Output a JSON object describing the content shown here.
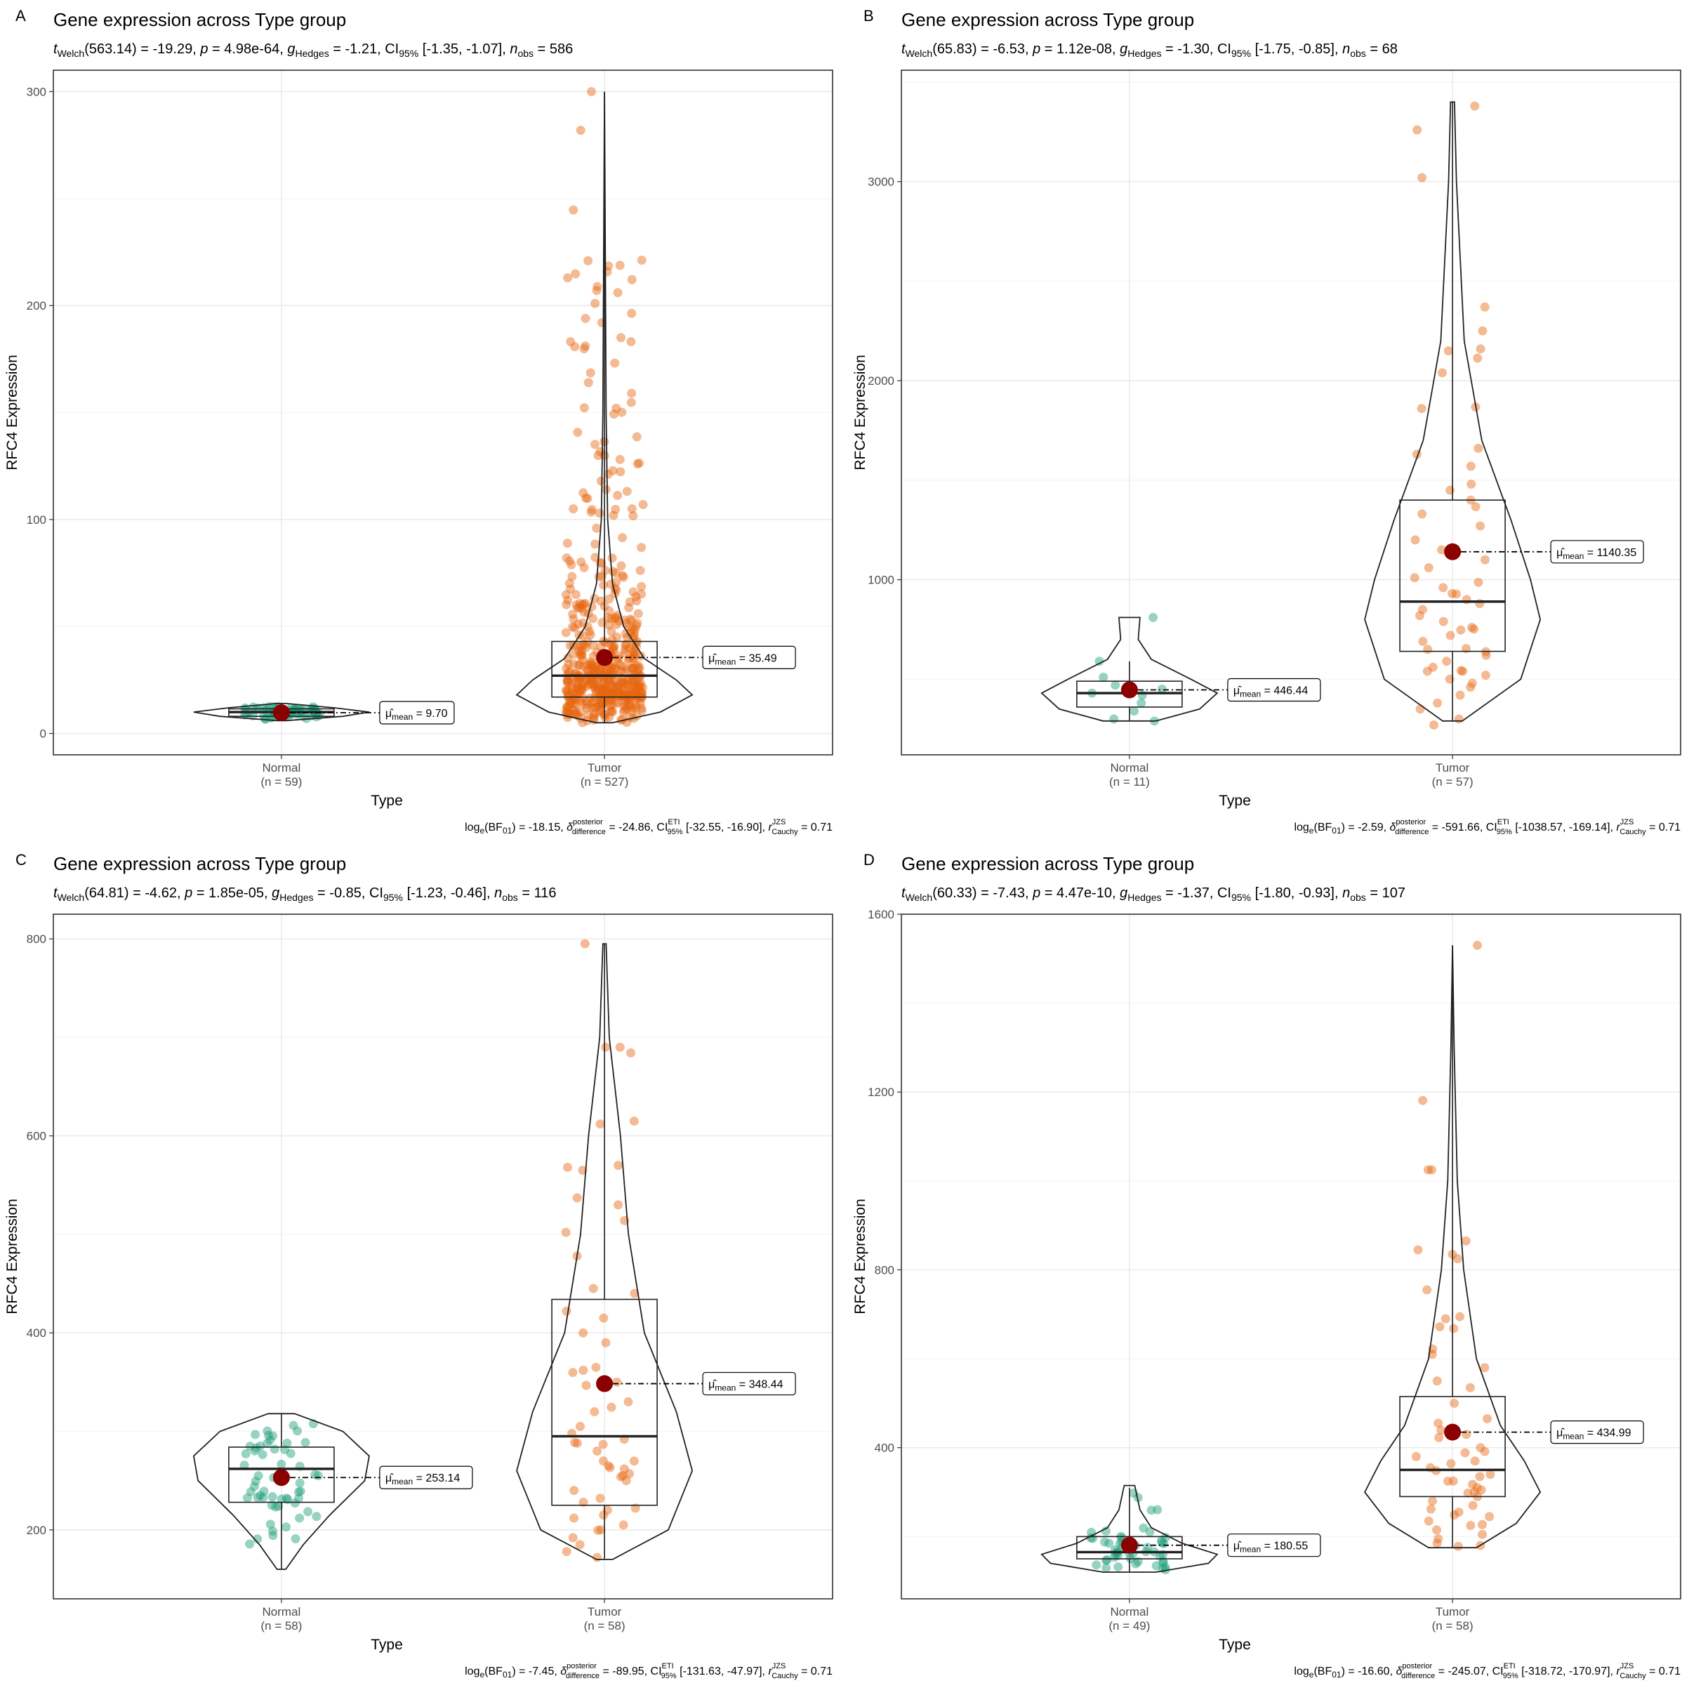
{
  "colors": {
    "normal": "#1b9e77",
    "tumor": "#e7660f",
    "mean_point": "#8b0000",
    "grid_major": "#ebebeb",
    "grid_minor": "#f4f4f4",
    "panel_border": "#333333"
  },
  "chart_data": [
    {
      "type": "violin-box-jitter",
      "panel_label": "A",
      "title": "Gene expression across Type group",
      "subtitle": {
        "stat": "t",
        "stat_sub": "Welch",
        "df": "(563.14) = -19.29, ",
        "p_label": "p",
        "p_value": " = 4.98e-64, ",
        "g_label": "g",
        "g_sub": "Hedges",
        "g_value": " = -1.21, CI",
        "ci_sub": "95%",
        "ci_value": " [-1.35, -1.07], ",
        "n_label": "n",
        "n_sub": "obs",
        "n_value": " = 586"
      },
      "caption": {
        "lead": "log",
        "lead_sub": "e",
        "bf": "(BF",
        "bf_sub": "01",
        "bf_value": ") = -18.15, ",
        "delta_label": "δ",
        "delta_sup": "posterior",
        "delta_sub": "difference",
        "delta_value": " = -24.86, CI",
        "ci_sup": "ETI",
        "ci_sub": "95%",
        "ci_value": " [-32.55, -16.90], ",
        "r_label": "r",
        "r_sup": "JZS",
        "r_sub": "Cauchy",
        "r_value": " = 0.71"
      },
      "xlabel": "Type",
      "ylabel": "RFC4 Expression",
      "ylim": [
        -10,
        310
      ],
      "yticks": [
        0,
        100,
        200,
        300
      ],
      "categories": [
        {
          "name": "Normal",
          "n_label": "(n = 59)",
          "n": 59,
          "mean": 9.7,
          "mean_label": "= 9.70",
          "q1": 8,
          "median": 10,
          "q3": 11.5,
          "whisker_low": 6,
          "whisker_high": 14,
          "violin_min": 6,
          "violin_max": 14,
          "violin_peaks": [
            [
              6,
              0.05
            ],
            [
              8,
              0.7
            ],
            [
              10,
              1.0
            ],
            [
              12,
              0.6
            ],
            [
              14,
              0.05
            ]
          ]
        },
        {
          "name": "Tumor",
          "n_label": "(n = 527)",
          "n": 527,
          "mean": 35.49,
          "mean_label": "= 35.49",
          "q1": 17,
          "median": 27,
          "q3": 43,
          "whisker_low": 5,
          "whisker_high": 300,
          "violin_min": 5,
          "violin_max": 300,
          "violin_peaks": [
            [
              5,
              0.05
            ],
            [
              10,
              0.35
            ],
            [
              18,
              0.55
            ],
            [
              25,
              0.45
            ],
            [
              35,
              0.25
            ],
            [
              50,
              0.12
            ],
            [
              70,
              0.05
            ],
            [
              100,
              0.02
            ],
            [
              150,
              0.01
            ],
            [
              300,
              0.0
            ]
          ],
          "outliers": [
            300,
            207,
            192,
            185,
            164,
            159,
            152,
            126,
            118,
            114,
            110,
            107,
            105
          ]
        }
      ]
    },
    {
      "type": "violin-box-jitter",
      "panel_label": "B",
      "title": "Gene expression across Type group",
      "subtitle": {
        "stat": "t",
        "stat_sub": "Welch",
        "df": "(65.83) = -6.53, ",
        "p_label": "p",
        "p_value": " = 1.12e-08, ",
        "g_label": "g",
        "g_sub": "Hedges",
        "g_value": " = -1.30, CI",
        "ci_sub": "95%",
        "ci_value": " [-1.75, -0.85], ",
        "n_label": "n",
        "n_sub": "obs",
        "n_value": " = 68"
      },
      "caption": {
        "lead": "log",
        "lead_sub": "e",
        "bf": "(BF",
        "bf_sub": "01",
        "bf_value": ") = -2.59, ",
        "delta_label": "δ",
        "delta_sup": "posterior",
        "delta_sub": "difference",
        "delta_value": " = -591.66, CI",
        "ci_sup": "ETI",
        "ci_sub": "95%",
        "ci_value": " [-1038.57, -169.14], ",
        "r_label": "r",
        "r_sup": "JZS",
        "r_sub": "Cauchy",
        "r_value": " = 0.71"
      },
      "xlabel": "Type",
      "ylabel": "RFC4 Expression",
      "ylim": [
        120,
        3560
      ],
      "yticks": [
        1000,
        2000,
        3000
      ],
      "categories": [
        {
          "name": "Normal",
          "n_label": "(n = 11)",
          "n": 11,
          "mean": 446.44,
          "mean_label": "= 446.44",
          "q1": 360,
          "median": 430,
          "q3": 490,
          "whisker_low": 290,
          "whisker_high": 590,
          "violin_min": 290,
          "violin_max": 810,
          "violin_peaks": [
            [
              290,
              0.3
            ],
            [
              350,
              0.8
            ],
            [
              430,
              1.0
            ],
            [
              500,
              0.7
            ],
            [
              600,
              0.25
            ],
            [
              700,
              0.1
            ],
            [
              810,
              0.12
            ]
          ],
          "points": [
            810,
            590,
            510,
            470,
            450,
            430,
            420,
            380,
            340,
            300,
            290
          ]
        },
        {
          "name": "Tumor",
          "n_label": "(n = 57)",
          "n": 57,
          "mean": 1140.35,
          "mean_label": "= 1140.35",
          "q1": 640,
          "median": 890,
          "q3": 1400,
          "whisker_low": 290,
          "whisker_high": 3400,
          "violin_min": 290,
          "violin_max": 3400,
          "violin_peaks": [
            [
              290,
              0.05
            ],
            [
              500,
              0.35
            ],
            [
              800,
              0.45
            ],
            [
              1000,
              0.4
            ],
            [
              1300,
              0.3
            ],
            [
              1700,
              0.15
            ],
            [
              2200,
              0.06
            ],
            [
              3000,
              0.02
            ],
            [
              3400,
              0.01
            ]
          ],
          "points": [
            3380,
            3260,
            3020,
            2370,
            2250,
            2150,
            2040,
            1860,
            1660,
            1630,
            1570,
            1480,
            1400,
            1330,
            1270,
            1200,
            1150,
            1100,
            1060,
            1010,
            960,
            930,
            900,
            880,
            850,
            820,
            790,
            760,
            720,
            690,
            650,
            620,
            590,
            560,
            540,
            520,
            500,
            480,
            460,
            420,
            380,
            350,
            300,
            270
          ]
        }
      ]
    },
    {
      "type": "violin-box-jitter",
      "panel_label": "C",
      "title": "Gene expression across Type group",
      "subtitle": {
        "stat": "t",
        "stat_sub": "Welch",
        "df": "(64.81) = -4.62, ",
        "p_label": "p",
        "p_value": " = 1.85e-05, ",
        "g_label": "g",
        "g_sub": "Hedges",
        "g_value": " = -0.85, CI",
        "ci_sub": "95%",
        "ci_value": " [-1.23, -0.46], ",
        "n_label": "n",
        "n_sub": "obs",
        "n_value": " = 116"
      },
      "caption": {
        "lead": "log",
        "lead_sub": "e",
        "bf": "(BF",
        "bf_sub": "01",
        "bf_value": ") = -7.45, ",
        "delta_label": "δ",
        "delta_sup": "posterior",
        "delta_sub": "difference",
        "delta_value": " = -89.95, CI",
        "ci_sup": "ETI",
        "ci_sub": "95%",
        "ci_value": " [-131.63, -47.97], ",
        "r_label": "r",
        "r_sup": "JZS",
        "r_sub": "Cauchy",
        "r_value": " = 0.71"
      },
      "xlabel": "Type",
      "ylabel": "RFC4 Expression",
      "ylim": [
        130,
        825
      ],
      "yticks": [
        200,
        400,
        600,
        800
      ],
      "categories": [
        {
          "name": "Normal",
          "n_label": "(n = 58)",
          "n": 58,
          "mean": 253.14,
          "mean_label": "= 253.14",
          "q1": 228,
          "median": 262,
          "q3": 284,
          "whisker_low": 160,
          "whisker_high": 318,
          "violin_min": 160,
          "violin_max": 318,
          "violin_peaks": [
            [
              160,
              0.05
            ],
            [
              185,
              0.25
            ],
            [
              215,
              0.55
            ],
            [
              250,
              0.95
            ],
            [
              275,
              1.0
            ],
            [
              300,
              0.7
            ],
            [
              318,
              0.15
            ]
          ]
        },
        {
          "name": "Tumor",
          "n_label": "(n = 58)",
          "n": 58,
          "mean": 348.44,
          "mean_label": "= 348.44",
          "q1": 225,
          "median": 295,
          "q3": 434,
          "whisker_low": 170,
          "whisker_high": 795,
          "violin_min": 170,
          "violin_max": 795,
          "violin_peaks": [
            [
              170,
              0.05
            ],
            [
              200,
              0.4
            ],
            [
              260,
              0.55
            ],
            [
              320,
              0.45
            ],
            [
              400,
              0.25
            ],
            [
              500,
              0.15
            ],
            [
              600,
              0.1
            ],
            [
              700,
              0.03
            ],
            [
              795,
              0.01
            ]
          ],
          "points": [
            795,
            690,
            690,
            615,
            612,
            570,
            568,
            565,
            537,
            530,
            514,
            502,
            478,
            445,
            440,
            422,
            415,
            400,
            390,
            365,
            362,
            350,
            330,
            320,
            305,
            298,
            292,
            288,
            280,
            270,
            265,
            262,
            255,
            250,
            240,
            232,
            228,
            222,
            220,
            215,
            212,
            205,
            200,
            192,
            185,
            178,
            172
          ]
        }
      ]
    },
    {
      "type": "violin-box-jitter",
      "panel_label": "D",
      "title": "Gene expression across Type group",
      "subtitle": {
        "stat": "t",
        "stat_sub": "Welch",
        "df": "(60.33) = -7.43, ",
        "p_label": "p",
        "p_value": " = 4.47e-10, ",
        "g_label": "g",
        "g_sub": "Hedges",
        "g_value": " = -1.37, CI",
        "ci_sub": "95%",
        "ci_value": " [-1.80, -0.93], ",
        "n_label": "n",
        "n_sub": "obs",
        "n_value": " = 107"
      },
      "caption": {
        "lead": "log",
        "lead_sub": "e",
        "bf": "(BF",
        "bf_sub": "01",
        "bf_value": ") = -16.60, ",
        "delta_label": "δ",
        "delta_sup": "posterior",
        "delta_sub": "difference",
        "delta_value": " = -245.07, CI",
        "ci_sup": "ETI",
        "ci_sub": "95%",
        "ci_value": " [-318.72, -170.97], ",
        "r_label": "r",
        "r_sup": "JZS",
        "r_sub": "Cauchy",
        "r_value": " = 0.71"
      },
      "xlabel": "Type",
      "ylabel": "RFC4 Expression",
      "ylim": [
        60,
        1600
      ],
      "yticks": [
        400,
        800,
        1200,
        1600
      ],
      "categories": [
        {
          "name": "Normal",
          "n_label": "(n = 49)",
          "n": 49,
          "mean": 180.55,
          "mean_label": "= 180.55",
          "q1": 150,
          "median": 165,
          "q3": 200,
          "whisker_low": 120,
          "whisker_high": 310,
          "violin_min": 120,
          "violin_max": 315,
          "violin_peaks": [
            [
              120,
              0.3
            ],
            [
              140,
              0.9
            ],
            [
              160,
              1.0
            ],
            [
              185,
              0.6
            ],
            [
              220,
              0.25
            ],
            [
              260,
              0.12
            ],
            [
              315,
              0.06
            ]
          ]
        },
        {
          "name": "Tumor",
          "n_label": "(n = 58)",
          "n": 58,
          "mean": 434.99,
          "mean_label": "= 434.99",
          "q1": 290,
          "median": 350,
          "q3": 515,
          "whisker_low": 175,
          "whisker_high": 1530,
          "violin_min": 175,
          "violin_max": 1530,
          "violin_peaks": [
            [
              175,
              0.15
            ],
            [
              230,
              0.4
            ],
            [
              300,
              0.55
            ],
            [
              370,
              0.45
            ],
            [
              450,
              0.3
            ],
            [
              600,
              0.15
            ],
            [
              800,
              0.07
            ],
            [
              1000,
              0.03
            ],
            [
              1300,
              0.01
            ],
            [
              1530,
              0.0
            ]
          ],
          "points": [
            1530,
            1025,
            1025,
            865,
            835,
            825,
            755,
            690,
            672,
            668,
            622,
            610,
            580,
            550,
            535,
            500,
            465,
            455,
            430,
            400,
            380,
            370,
            355,
            340,
            325,
            310,
            305,
            300,
            298,
            290,
            280,
            270,
            262,
            255,
            245,
            235,
            225,
            215,
            205,
            195,
            185,
            180,
            178
          ]
        }
      ]
    }
  ]
}
